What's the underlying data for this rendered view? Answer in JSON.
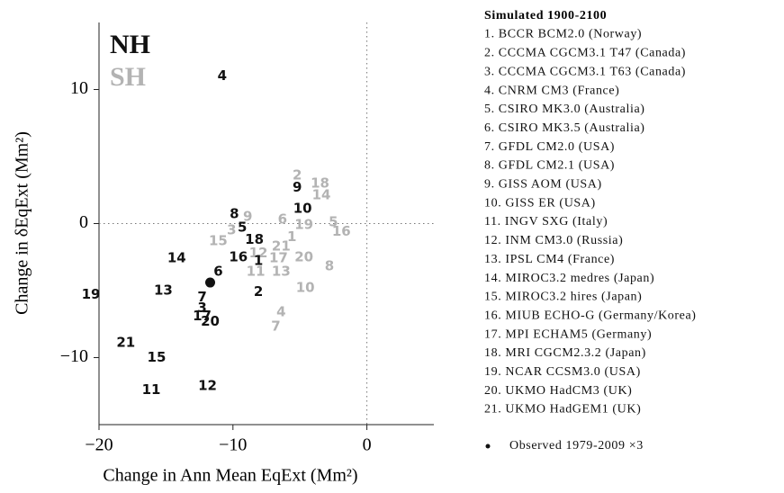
{
  "chart_data": {
    "type": "scatter",
    "xlabel": "Change in Ann Mean EqExt (Mm²)",
    "ylabel": "Change in δEqExt (Mm²)",
    "xlim": [
      -20,
      5
    ],
    "ylim": [
      -15,
      15
    ],
    "xticks": [
      {
        "value": -20,
        "label": "−20"
      },
      {
        "value": -10,
        "label": "−10"
      },
      0
    ],
    "yticks": [
      {
        "value": -10,
        "label": "−10"
      },
      0,
      10
    ],
    "reference_lines": {
      "x": 0,
      "y": 0
    },
    "series": [
      {
        "name": "NH",
        "color": "#111111",
        "labels": [
          "4",
          "9",
          "10",
          "8",
          "5",
          "18",
          "16",
          "1",
          "14",
          "6",
          "2",
          "13",
          "19",
          "7",
          "3",
          "17",
          "20",
          "21",
          "15",
          "11",
          "12"
        ],
        "x": [
          -10.8,
          -5.2,
          -4.8,
          -9.9,
          -9.3,
          -8.4,
          -9.6,
          -8.1,
          -14.2,
          -11.1,
          -8.1,
          -15.2,
          -20.6,
          -12.3,
          -12.3,
          -12.3,
          -11.7,
          -18.0,
          -15.7,
          -16.1,
          -11.9
        ],
        "values": [
          11.0,
          2.7,
          1.1,
          0.7,
          -0.3,
          -1.2,
          -2.5,
          -2.8,
          -2.6,
          -3.6,
          -5.1,
          -5.0,
          -5.3,
          -5.5,
          -6.3,
          -6.9,
          -7.3,
          -8.9,
          -10.0,
          -12.4,
          -12.1
        ]
      },
      {
        "name": "SH",
        "color": "#b3b3b3",
        "labels": [
          "2",
          "18",
          "14",
          "9",
          "6",
          "5",
          "3",
          "19",
          "16",
          "1",
          "15",
          "12",
          "21",
          "17",
          "20",
          "11",
          "13",
          "8",
          "10",
          "4",
          "7"
        ],
        "x": [
          -5.2,
          -3.5,
          -3.4,
          -8.9,
          -6.3,
          -2.5,
          -10.1,
          -4.7,
          -1.9,
          -5.6,
          -11.1,
          -8.1,
          -6.4,
          -6.6,
          -4.7,
          -8.3,
          -6.4,
          -2.8,
          -4.6,
          -6.4,
          -6.8
        ],
        "values": [
          3.6,
          3.0,
          2.1,
          0.5,
          0.3,
          0.1,
          -0.5,
          -0.1,
          -0.6,
          -1.0,
          -1.3,
          -2.2,
          -1.7,
          -2.6,
          -2.5,
          -3.6,
          -3.6,
          -3.2,
          -4.8,
          -6.6,
          -7.7
        ]
      },
      {
        "name": "Observed 1979-2009 ×3",
        "color": "#111111",
        "x": [
          -11.7
        ],
        "values": [
          -4.4
        ]
      }
    ],
    "legend_title": "Simulated 1900-2100",
    "models": [
      "1. BCCR BCM2.0 (Norway)",
      "2. CCCMA CGCM3.1 T47 (Canada)",
      "3. CCCMA CGCM3.1 T63 (Canada)",
      "4. CNRM CM3 (France)",
      "5. CSIRO MK3.0 (Australia)",
      "6. CSIRO MK3.5 (Australia)",
      "7. GFDL CM2.0 (USA)",
      "8. GFDL CM2.1 (USA)",
      "9. GISS AOM (USA)",
      "10. GISS ER (USA)",
      "11. INGV SXG (Italy)",
      "12. INM CM3.0 (Russia)",
      "13. IPSL CM4 (France)",
      "14. MIROC3.2 medres (Japan)",
      "15. MIROC3.2 hires (Japan)",
      "16. MIUB ECHO-G (Germany/Korea)",
      "17. MPI ECHAM5 (Germany)",
      "18. MRI CGCM2.3.2 (Japan)",
      "19. NCAR CCSM3.0 (USA)",
      "20. UKMO HadCM3 (UK)",
      "21. UKMO HadGEM1 (UK)"
    ]
  }
}
